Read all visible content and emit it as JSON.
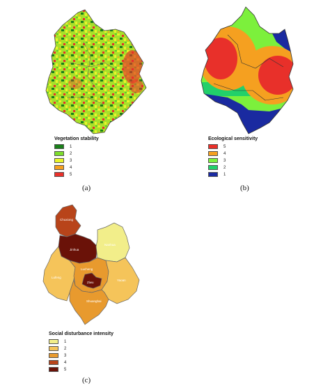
{
  "panel_a": {
    "caption": "(a)",
    "legend": {
      "title": "Vegetation stability",
      "items": [
        {
          "label": "1",
          "color": "#1a7f1a"
        },
        {
          "label": "2",
          "color": "#7cdc2c"
        },
        {
          "label": "3",
          "color": "#e8f52a"
        },
        {
          "label": "4",
          "color": "#f5a020"
        },
        {
          "label": "5",
          "color": "#e8302a"
        }
      ]
    }
  },
  "panel_b": {
    "caption": "(b)",
    "legend": {
      "title": "Ecological sensitivity",
      "items": [
        {
          "label": "5",
          "color": "#e8302a"
        },
        {
          "label": "4",
          "color": "#f5a020"
        },
        {
          "label": "3",
          "color": "#7cf03c"
        },
        {
          "label": "2",
          "color": "#22d06a"
        },
        {
          "label": "1",
          "color": "#1a2aa0"
        }
      ]
    }
  },
  "panel_c": {
    "caption": "(c)",
    "legend": {
      "title": "Social disturbance intensity",
      "items": [
        {
          "label": "1",
          "color": "#f2ee8a"
        },
        {
          "label": "2",
          "color": "#f5c45a"
        },
        {
          "label": "3",
          "color": "#e89a2e"
        },
        {
          "label": "4",
          "color": "#b8441a"
        },
        {
          "label": "5",
          "color": "#6a1208"
        }
      ]
    }
  }
}
